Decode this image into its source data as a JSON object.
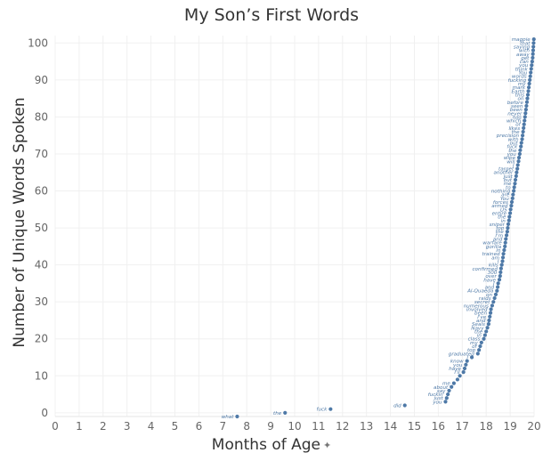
{
  "chart_data": {
    "type": "scatter",
    "title": "My Son’s First Words",
    "xlabel": "Months of Age",
    "ylabel": "Number of Unique Words Spoken",
    "xlim": [
      0,
      20
    ],
    "ylim": [
      -1,
      102
    ],
    "x_ticks": [
      0,
      1,
      2,
      3,
      4,
      5,
      6,
      7,
      8,
      9,
      10,
      11,
      12,
      13,
      14,
      15,
      16,
      17,
      18,
      19,
      20
    ],
    "y_ticks": [
      0,
      10,
      20,
      30,
      40,
      50,
      60,
      70,
      80,
      90,
      100
    ],
    "grid": true,
    "marker_color": "#4e79a7",
    "points": [
      {
        "x": 7.6,
        "y": -1,
        "label": "what"
      },
      {
        "x": 9.6,
        "y": 0,
        "label": "the"
      },
      {
        "x": 11.5,
        "y": 1,
        "label": "fuck"
      },
      {
        "x": 14.6,
        "y": 2,
        "label": "did"
      },
      {
        "x": 16.3,
        "y": 3,
        "label": "you"
      },
      {
        "x": 16.35,
        "y": 4,
        "label": "just"
      },
      {
        "x": 16.4,
        "y": 5,
        "label": "fuckin'"
      },
      {
        "x": 16.45,
        "y": 6,
        "label": "say"
      },
      {
        "x": 16.55,
        "y": 7,
        "label": "about"
      },
      {
        "x": 16.65,
        "y": 8,
        "label": "me"
      },
      {
        "x": 16.8,
        "y": 9,
        "label": ""
      },
      {
        "x": 16.9,
        "y": 10,
        "label": ""
      },
      {
        "x": 17.05,
        "y": 11,
        "label": "I'll"
      },
      {
        "x": 17.1,
        "y": 12,
        "label": "have"
      },
      {
        "x": 17.15,
        "y": 13,
        "label": "you"
      },
      {
        "x": 17.2,
        "y": 14,
        "label": "know"
      },
      {
        "x": 17.4,
        "y": 15,
        "label": "I"
      },
      {
        "x": 17.65,
        "y": 16,
        "label": "graduated"
      },
      {
        "x": 17.7,
        "y": 17,
        "label": "top"
      },
      {
        "x": 17.75,
        "y": 18,
        "label": "of"
      },
      {
        "x": 17.8,
        "y": 19,
        "label": "my"
      },
      {
        "x": 17.9,
        "y": 20,
        "label": "class"
      },
      {
        "x": 17.95,
        "y": 21,
        "label": "in"
      },
      {
        "x": 18.0,
        "y": 22,
        "label": "the"
      },
      {
        "x": 18.05,
        "y": 23,
        "label": "Navy"
      },
      {
        "x": 18.1,
        "y": 24,
        "label": "Seals"
      },
      {
        "x": 18.12,
        "y": 25,
        "label": "and"
      },
      {
        "x": 18.15,
        "y": 26,
        "label": "I've"
      },
      {
        "x": 18.18,
        "y": 27,
        "label": "been"
      },
      {
        "x": 18.2,
        "y": 28,
        "label": "involved"
      },
      {
        "x": 18.25,
        "y": 29,
        "label": "numerous"
      },
      {
        "x": 18.3,
        "y": 30,
        "label": "secret"
      },
      {
        "x": 18.35,
        "y": 31,
        "label": "raids"
      },
      {
        "x": 18.4,
        "y": 32,
        "label": "on"
      },
      {
        "x": 18.45,
        "y": 33,
        "label": "Al-Quaeda"
      },
      {
        "x": 18.48,
        "y": 34,
        "label": "and"
      },
      {
        "x": 18.5,
        "y": 35,
        "label": "I"
      },
      {
        "x": 18.55,
        "y": 36,
        "label": "have"
      },
      {
        "x": 18.58,
        "y": 37,
        "label": "over"
      },
      {
        "x": 18.6,
        "y": 38,
        "label": "300"
      },
      {
        "x": 18.62,
        "y": 39,
        "label": "confirmed"
      },
      {
        "x": 18.65,
        "y": 40,
        "label": "kills"
      },
      {
        "x": 18.68,
        "y": 41,
        "label": "I"
      },
      {
        "x": 18.7,
        "y": 42,
        "label": "am"
      },
      {
        "x": 18.72,
        "y": 43,
        "label": "trained"
      },
      {
        "x": 18.75,
        "y": 44,
        "label": "in"
      },
      {
        "x": 18.78,
        "y": 45,
        "label": "gorilla"
      },
      {
        "x": 18.8,
        "y": 46,
        "label": "warfare"
      },
      {
        "x": 18.82,
        "y": 47,
        "label": "and"
      },
      {
        "x": 18.85,
        "y": 48,
        "label": "I'm"
      },
      {
        "x": 18.88,
        "y": 49,
        "label": "the"
      },
      {
        "x": 18.9,
        "y": 50,
        "label": "top"
      },
      {
        "x": 18.92,
        "y": 51,
        "label": "sniper"
      },
      {
        "x": 18.95,
        "y": 52,
        "label": "in"
      },
      {
        "x": 18.97,
        "y": 53,
        "label": "the"
      },
      {
        "x": 19.0,
        "y": 54,
        "label": "entire"
      },
      {
        "x": 19.02,
        "y": 55,
        "label": "US"
      },
      {
        "x": 19.05,
        "y": 56,
        "label": "armed"
      },
      {
        "x": 19.07,
        "y": 57,
        "label": "forces"
      },
      {
        "x": 19.1,
        "y": 58,
        "label": "You"
      },
      {
        "x": 19.12,
        "y": 59,
        "label": "are"
      },
      {
        "x": 19.15,
        "y": 60,
        "label": "nothing"
      },
      {
        "x": 19.17,
        "y": 61,
        "label": "to"
      },
      {
        "x": 19.2,
        "y": 62,
        "label": "me"
      },
      {
        "x": 19.22,
        "y": 63,
        "label": "but"
      },
      {
        "x": 19.25,
        "y": 64,
        "label": "just"
      },
      {
        "x": 19.27,
        "y": 65,
        "label": "another"
      },
      {
        "x": 19.3,
        "y": 66,
        "label": "target"
      },
      {
        "x": 19.32,
        "y": 67,
        "label": "I"
      },
      {
        "x": 19.35,
        "y": 68,
        "label": "will"
      },
      {
        "x": 19.37,
        "y": 69,
        "label": "wipe"
      },
      {
        "x": 19.4,
        "y": 70,
        "label": "you"
      },
      {
        "x": 19.42,
        "y": 71,
        "label": "the"
      },
      {
        "x": 19.45,
        "y": 72,
        "label": "fuck"
      },
      {
        "x": 19.47,
        "y": 73,
        "label": "out"
      },
      {
        "x": 19.5,
        "y": 74,
        "label": "with"
      },
      {
        "x": 19.52,
        "y": 75,
        "label": "precision"
      },
      {
        "x": 19.54,
        "y": 76,
        "label": "the"
      },
      {
        "x": 19.56,
        "y": 77,
        "label": "likes"
      },
      {
        "x": 19.58,
        "y": 78,
        "label": "of"
      },
      {
        "x": 19.6,
        "y": 79,
        "label": "which"
      },
      {
        "x": 19.62,
        "y": 80,
        "label": "has"
      },
      {
        "x": 19.64,
        "y": 81,
        "label": "never"
      },
      {
        "x": 19.66,
        "y": 82,
        "label": "been"
      },
      {
        "x": 19.68,
        "y": 83,
        "label": "seen"
      },
      {
        "x": 19.7,
        "y": 84,
        "label": "before"
      },
      {
        "x": 19.72,
        "y": 85,
        "label": "on"
      },
      {
        "x": 19.74,
        "y": 86,
        "label": "this"
      },
      {
        "x": 19.76,
        "y": 87,
        "label": "Earth"
      },
      {
        "x": 19.78,
        "y": 88,
        "label": "mark"
      },
      {
        "x": 19.8,
        "y": 89,
        "label": "my"
      },
      {
        "x": 19.82,
        "y": 90,
        "label": "fucking"
      },
      {
        "x": 19.84,
        "y": 91,
        "label": "words"
      },
      {
        "x": 19.86,
        "y": 92,
        "label": "You"
      },
      {
        "x": 19.88,
        "y": 93,
        "label": "think"
      },
      {
        "x": 19.9,
        "y": 94,
        "label": "you"
      },
      {
        "x": 19.92,
        "y": 95,
        "label": "can"
      },
      {
        "x": 19.94,
        "y": 96,
        "label": "get"
      },
      {
        "x": 19.95,
        "y": 97,
        "label": "away"
      },
      {
        "x": 19.96,
        "y": 98,
        "label": "with"
      },
      {
        "x": 19.97,
        "y": 99,
        "label": "saying"
      },
      {
        "x": 19.98,
        "y": 100,
        "label": "that"
      },
      {
        "x": 19.99,
        "y": 101,
        "label": "magpie"
      }
    ]
  }
}
